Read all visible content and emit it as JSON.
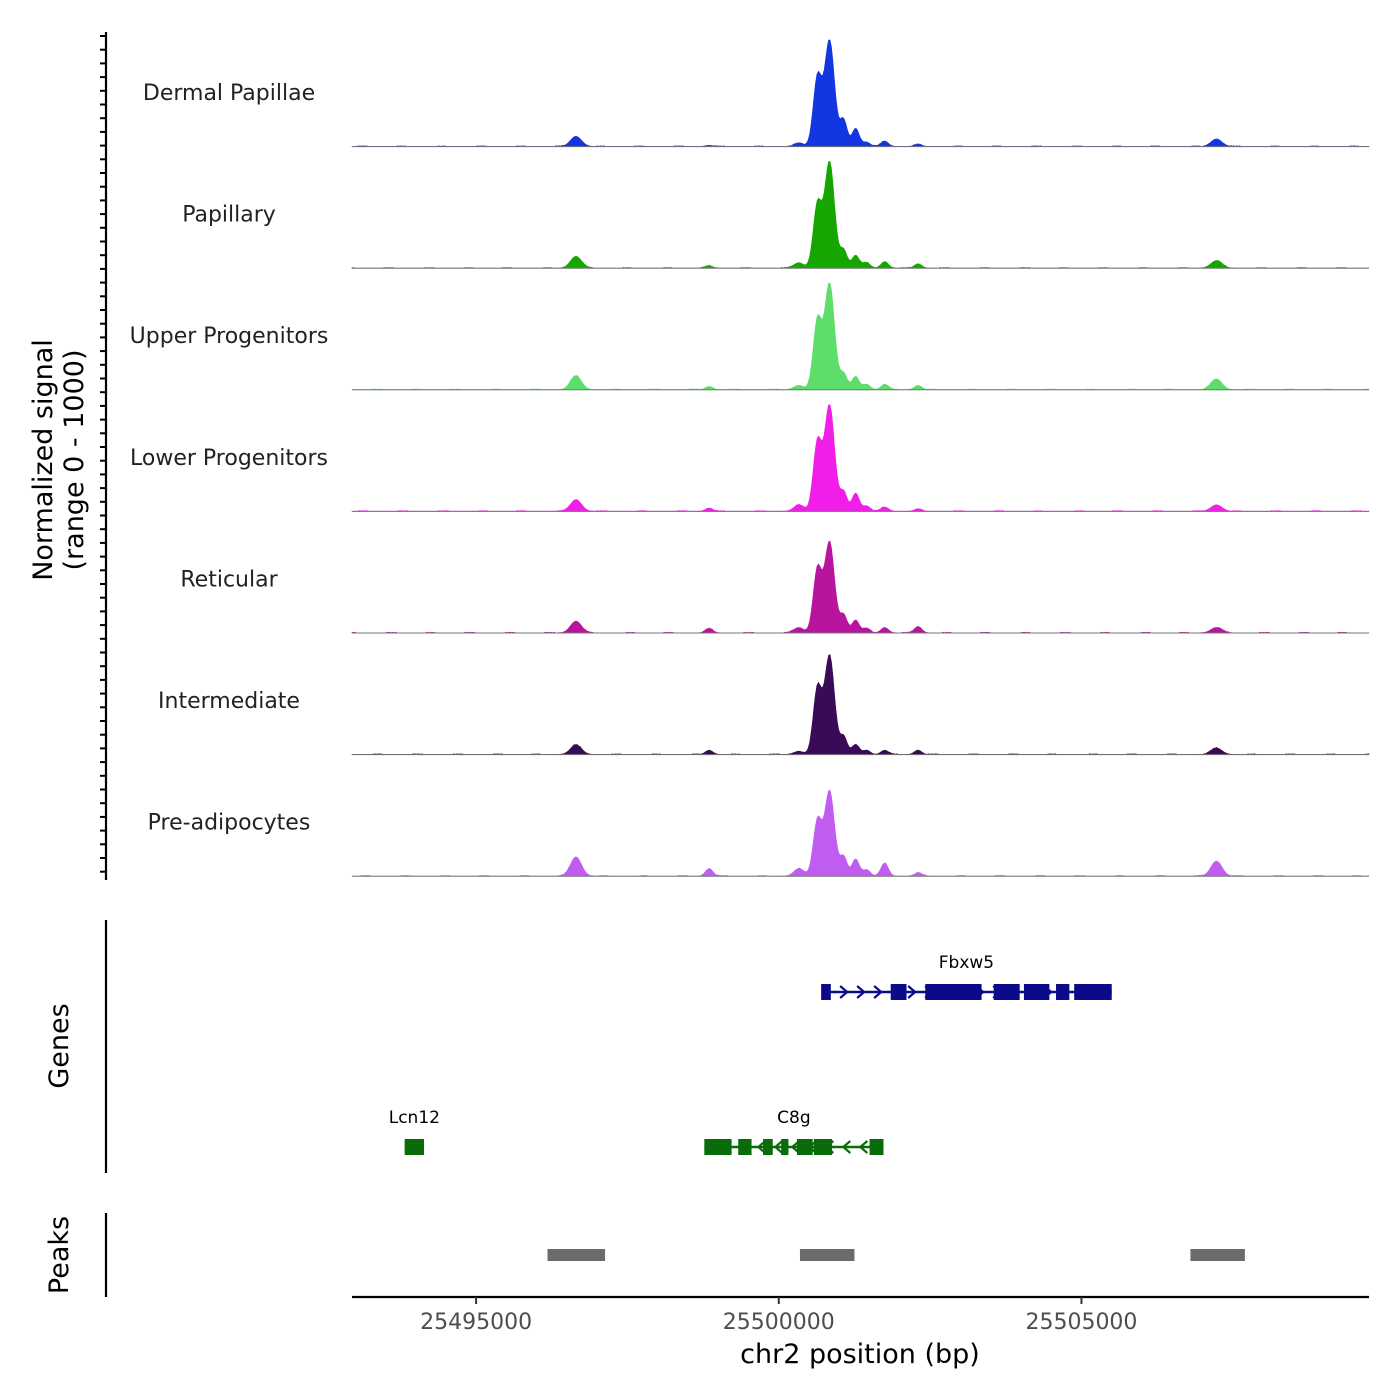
{
  "chart_data": {
    "type": "area",
    "title": "",
    "ylabel_line1": "Normalized signal",
    "ylabel_line2": "(range 0 - 1000)",
    "genes_label": "Genes",
    "peaks_label": "Peaks",
    "xlabel": "chr2 position (bp)",
    "xlim": [
      25492950,
      25509750
    ],
    "x_ticks": [
      {
        "value": 25495000,
        "label": "25495000"
      },
      {
        "value": 25500000,
        "label": "25500000"
      },
      {
        "value": 25505000,
        "label": "25505000"
      }
    ],
    "ylim": [
      0,
      1000
    ],
    "tracks": [
      {
        "name": "Dermal Papillae",
        "color": "#1436e0"
      },
      {
        "name": "Papillary",
        "color": "#16a600"
      },
      {
        "name": "Upper Progenitors",
        "color": "#5ddd6a"
      },
      {
        "name": "Lower Progenitors",
        "color": "#f01ee8"
      },
      {
        "name": "Reticular",
        "color": "#b8159f"
      },
      {
        "name": "Intermediate",
        "color": "#3a0a57"
      },
      {
        "name": "Pre-adipocytes",
        "color": "#c05cf0"
      }
    ],
    "signal_peaks": [
      {
        "center": 25496650,
        "width": 90,
        "heights": [
          95,
          110,
          130,
          110,
          110,
          90,
          180
        ]
      },
      {
        "center": 25500640,
        "width": 70,
        "heights": [
          650,
          600,
          650,
          650,
          600,
          620,
          520
        ]
      },
      {
        "center": 25500840,
        "width": 80,
        "heights": [
          1000,
          1000,
          1000,
          1000,
          850,
          930,
          800
        ]
      },
      {
        "center": 25501070,
        "width": 60,
        "heights": [
          250,
          170,
          150,
          180,
          170,
          170,
          180
        ]
      },
      {
        "center": 25501270,
        "width": 60,
        "heights": [
          170,
          120,
          120,
          170,
          120,
          90,
          160
        ]
      },
      {
        "center": 25500330,
        "width": 80,
        "heights": [
          30,
          50,
          40,
          60,
          50,
          30,
          70
        ]
      },
      {
        "center": 25501450,
        "width": 60,
        "heights": [
          40,
          50,
          50,
          50,
          40,
          40,
          60
        ]
      },
      {
        "center": 25501750,
        "width": 60,
        "heights": [
          50,
          60,
          50,
          40,
          50,
          40,
          120
        ]
      },
      {
        "center": 25502300,
        "width": 60,
        "heights": [
          20,
          40,
          40,
          20,
          60,
          40,
          30
        ]
      },
      {
        "center": 25498850,
        "width": 60,
        "heights": [
          10,
          20,
          30,
          30,
          40,
          40,
          70
        ]
      },
      {
        "center": 25507230,
        "width": 90,
        "heights": [
          70,
          70,
          100,
          60,
          50,
          60,
          140
        ]
      }
    ],
    "genes": [
      {
        "name": "Fbxw5",
        "strand": "+",
        "color": "#0a0a8a",
        "row": 1,
        "start": 25500700,
        "end": 25505500,
        "exons": [
          [
            25500700,
            25500860
          ],
          [
            25501850,
            25502110
          ],
          [
            25502420,
            25503350
          ],
          [
            25503550,
            25503980
          ],
          [
            25504050,
            25504470
          ],
          [
            25504580,
            25504800
          ],
          [
            25504880,
            25505500
          ]
        ]
      },
      {
        "name": "Lcn12",
        "strand": "-",
        "color": "#0a6b0a",
        "row": 2,
        "start": 25493820,
        "end": 25494140,
        "exons": [
          [
            25493820,
            25494140
          ]
        ]
      },
      {
        "name": "C8g",
        "strand": "-",
        "color": "#0a6b0a",
        "row": 2,
        "start": 25498770,
        "end": 25501730,
        "exons": [
          [
            25498770,
            25499220
          ],
          [
            25499330,
            25499550
          ],
          [
            25499740,
            25499900
          ],
          [
            25500040,
            25500160
          ],
          [
            25500300,
            25500560
          ],
          [
            25500580,
            25500880
          ],
          [
            25501500,
            25501730
          ]
        ]
      }
    ],
    "peaks": [
      {
        "start": 25496180,
        "end": 25497130
      },
      {
        "start": 25500350,
        "end": 25501250
      },
      {
        "start": 25506800,
        "end": 25507700
      }
    ]
  }
}
